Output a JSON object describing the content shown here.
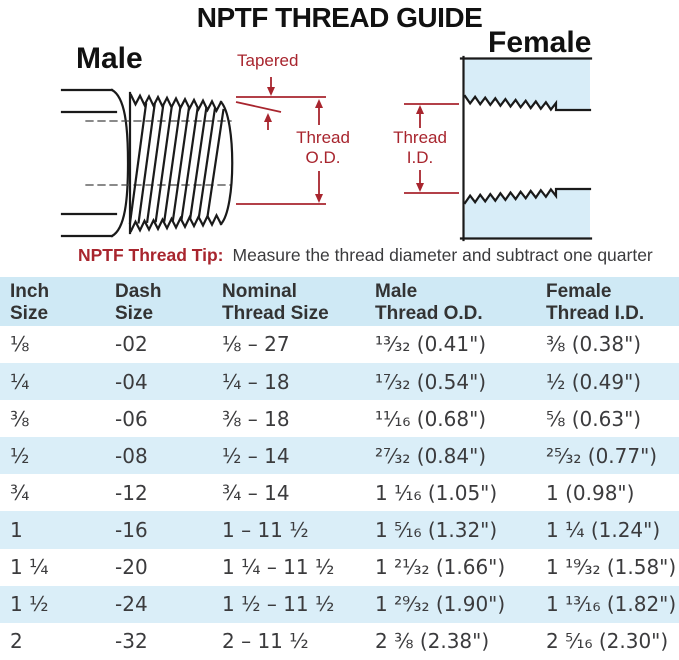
{
  "title": "NPTF THREAD GUIDE",
  "diagram": {
    "male_label": "Male",
    "female_label": "Female",
    "tapered_label": "Tapered",
    "thread_od_label": "Thread\nO.D.",
    "thread_id_label": "Thread\nI.D."
  },
  "tip": {
    "label": "NPTF Thread Tip:",
    "text": "Measure the thread diameter and subtract one quarter"
  },
  "colors": {
    "annotation_red": "#a8252e",
    "diagram_blue": "#d8edf8",
    "table_header_blue": "#cfe9f5",
    "table_row_blue": "#daeef8",
    "line_black": "#1a1a1a",
    "text_dark": "#3b3b3d"
  },
  "table": {
    "columns": [
      [
        "Inch",
        "Size"
      ],
      [
        "Dash",
        "Size"
      ],
      [
        "Nominal",
        "Thread Size"
      ],
      [
        "Male",
        "Thread O.D."
      ],
      [
        "Female",
        "Thread I.D."
      ]
    ],
    "rows": [
      [
        "⅛",
        "-02",
        "⅛ – 27",
        "¹³⁄₃₂ (0.41\")",
        "⅜ (0.38\")"
      ],
      [
        "¼",
        "-04",
        "¼ – 18",
        "¹⁷⁄₃₂ (0.54\")",
        "½ (0.49\")"
      ],
      [
        "⅜",
        "-06",
        "⅜ – 18",
        "¹¹⁄₁₆ (0.68\")",
        "⅝ (0.63\")"
      ],
      [
        "½",
        "-08",
        "½ – 14",
        "²⁷⁄₃₂ (0.84\")",
        "²⁵⁄₃₂ (0.77\")"
      ],
      [
        "¾",
        "-12",
        "¾ – 14",
        "1 ¹⁄₁₆ (1.05\")",
        "1 (0.98\")"
      ],
      [
        "1",
        "-16",
        "1 – 11 ½",
        "1 ⁵⁄₁₆ (1.32\")",
        "1 ¼ (1.24\")"
      ],
      [
        "1 ¼",
        "-20",
        "1 ¼ – 11 ½",
        "1 ²¹⁄₃₂ (1.66\")",
        "1 ¹⁹⁄₃₂ (1.58\")"
      ],
      [
        "1 ½",
        "-24",
        "1 ½ – 11 ½",
        "1 ²⁹⁄₃₂ (1.90\")",
        "1 ¹³⁄₁₆ (1.82\")"
      ],
      [
        "2",
        "-32",
        "2 – 11 ½",
        "2 ⅜ (2.38\")",
        "2 ⁵⁄₁₆ (2.30\")"
      ]
    ]
  }
}
